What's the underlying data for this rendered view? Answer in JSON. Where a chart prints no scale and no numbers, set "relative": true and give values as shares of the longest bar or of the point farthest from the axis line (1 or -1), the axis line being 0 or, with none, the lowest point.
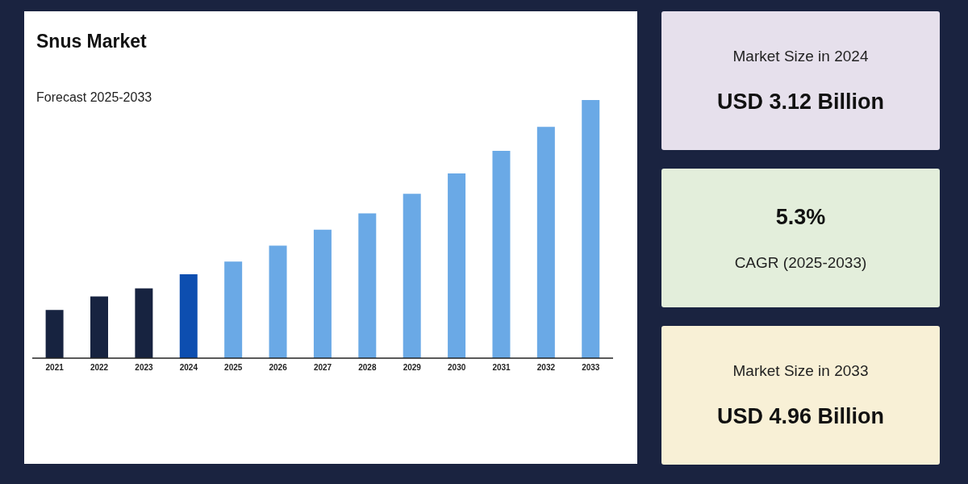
{
  "chart_data": [
    {
      "type": "bar",
      "title": "Snus Market",
      "subtitle": "Forecast 2025-2033",
      "relative": true,
      "categories": [
        "2021",
        "2022",
        "2023",
        "2024",
        "2025",
        "2026",
        "2027",
        "2028",
        "2029",
        "2030",
        "2031",
        "2032",
        "2033"
      ],
      "values": [
        0.187,
        0.239,
        0.27,
        0.325,
        0.374,
        0.436,
        0.498,
        0.561,
        0.637,
        0.716,
        0.803,
        0.896,
        1
      ],
      "colors": [
        "#172340",
        "#172340",
        "#172340",
        "#0d4eb0",
        "#6aa9e6",
        "#6aa9e6",
        "#6aa9e6",
        "#6aa9e6",
        "#6aa9e6",
        "#6aa9e6",
        "#6aa9e6",
        "#6aa9e6",
        "#6aa9e6"
      ],
      "grid": false,
      "legend": false
    },
    {
      "type": "other",
      "annotations": [
        "Market Size in 2024",
        "USD 3.12 Billion"
      ]
    },
    {
      "type": "other",
      "annotations": [
        "5.3%",
        "CAGR (2025-2033)"
      ]
    },
    {
      "type": "other",
      "annotations": [
        "Market Size in 2033",
        "USD 4.96 Billion"
      ]
    }
  ]
}
